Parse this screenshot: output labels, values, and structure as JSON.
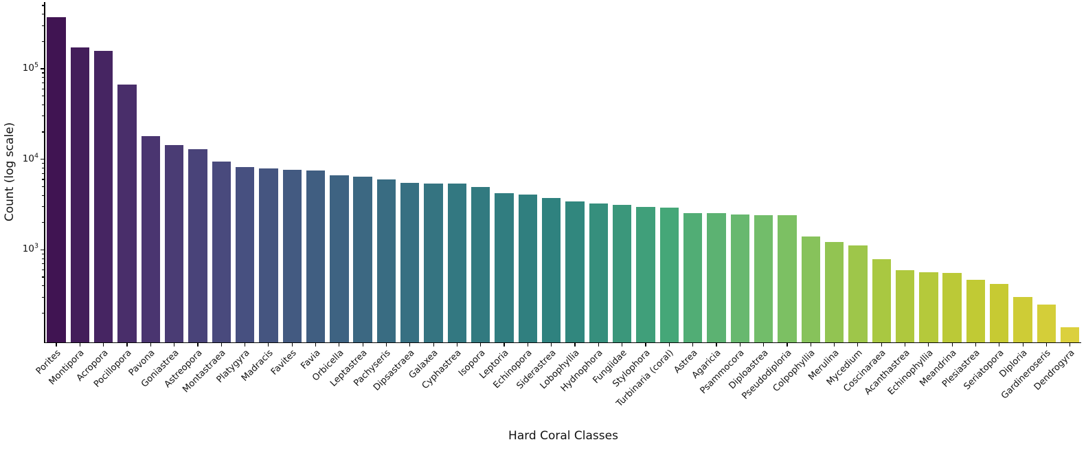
{
  "chart_data": {
    "type": "bar",
    "title": "",
    "xlabel": "Hard Coral Classes",
    "ylabel": "Count (log scale)",
    "yscale": "log",
    "ylim": [
      102,
      540000
    ],
    "grid": false,
    "legend": false,
    "ytick_labels": [
      {
        "text": "10⁵",
        "exponent": 5
      },
      {
        "text": "10⁴",
        "exponent": 4
      },
      {
        "text": "10³",
        "exponent": 3
      }
    ],
    "palette_name": "viridis (desaturated 0.75)",
    "palette_stops": [
      "#440154",
      "#482878",
      "#3e4989",
      "#31688e",
      "#26828e",
      "#21918c",
      "#35b779",
      "#6dcd59",
      "#b5de2b",
      "#dce319",
      "#fde725"
    ],
    "axis_color": "#000000",
    "text_color": "#111111",
    "background_color": "#ffffff",
    "categories": [
      "Porites",
      "Montipora",
      "Acropora",
      "Pocillopora",
      "Pavona",
      "Goniastrea",
      "Astreopora",
      "Montastraea",
      "Platygyra",
      "Madracis",
      "Favites",
      "Favia",
      "Orbicella",
      "Leptastrea",
      "Pachyseris",
      "Dipsastraea",
      "Galaxea",
      "Cyphastrea",
      "Isopora",
      "Leptoria",
      "Echinopora",
      "Siderastrea",
      "Lobophyllia",
      "Hydnophora",
      "Fungiidae",
      "Stylophora",
      "Turbinaria (coral)",
      "Astrea",
      "Agaricia",
      "Psammocora",
      "Diploastrea",
      "Pseudodiploria",
      "Colpophyllia",
      "Merulina",
      "Mycedium",
      "Coscinaraea",
      "Acanthastrea",
      "Echinophyllia",
      "Meandrina",
      "Plesiastrea",
      "Seriatopora",
      "Diploria",
      "Gardineroseris",
      "Dendrogyra"
    ],
    "values": [
      370000,
      172000,
      157000,
      66500,
      18000,
      14400,
      12900,
      9500,
      8200,
      7900,
      7700,
      7500,
      6650,
      6450,
      6000,
      5500,
      5400,
      5350,
      4950,
      4200,
      4050,
      3750,
      3450,
      3250,
      3150,
      2970,
      2920,
      2550,
      2530,
      2470,
      2430,
      2400,
      1400,
      1230,
      1120,
      790,
      600,
      565,
      560,
      465,
      420,
      300,
      250,
      140
    ]
  }
}
